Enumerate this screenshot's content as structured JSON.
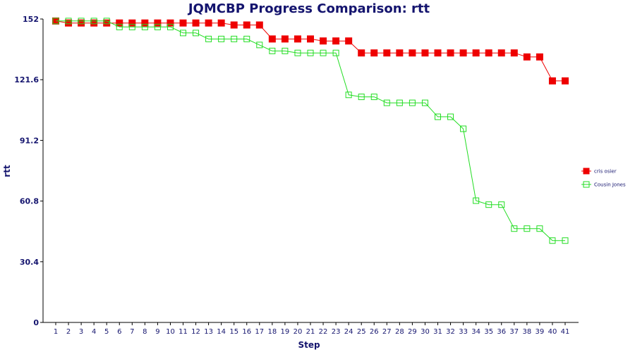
{
  "chart_data": {
    "type": "line",
    "title": "JQMCBP Progress Comparison: rtt",
    "xlabel": "Step",
    "ylabel": "rtt",
    "x": [
      1,
      2,
      3,
      4,
      5,
      6,
      7,
      8,
      9,
      10,
      11,
      12,
      13,
      14,
      15,
      16,
      17,
      18,
      19,
      20,
      21,
      22,
      23,
      24,
      25,
      26,
      27,
      28,
      29,
      30,
      31,
      32,
      33,
      34,
      35,
      36,
      37,
      38,
      39,
      40,
      41
    ],
    "ylim": [
      0,
      152
    ],
    "yticks": [
      "0",
      "30.4",
      "60.8",
      "91.2",
      "121.6",
      "152"
    ],
    "legend_position": "right",
    "series": [
      {
        "name": "cris osier",
        "color": "#ee0000",
        "marker": "filled-square",
        "values": [
          151,
          150,
          150,
          150,
          150,
          150,
          150,
          150,
          150,
          150,
          150,
          150,
          150,
          150,
          149,
          149,
          149,
          142,
          142,
          142,
          142,
          141,
          141,
          141,
          135,
          135,
          135,
          135,
          135,
          135,
          135,
          135,
          135,
          135,
          135,
          135,
          135,
          133,
          133,
          121,
          121
        ]
      },
      {
        "name": "Cousin Jones",
        "color": "#22dd22",
        "marker": "hollow-square",
        "values": [
          151,
          151,
          151,
          151,
          151,
          148,
          148,
          148,
          148,
          148,
          145,
          145,
          142,
          142,
          142,
          142,
          139,
          136,
          136,
          135,
          135,
          135,
          135,
          114,
          113,
          113,
          110,
          110,
          110,
          110,
          103,
          103,
          97,
          61,
          59,
          59,
          47,
          47,
          47,
          41,
          41
        ]
      }
    ]
  }
}
